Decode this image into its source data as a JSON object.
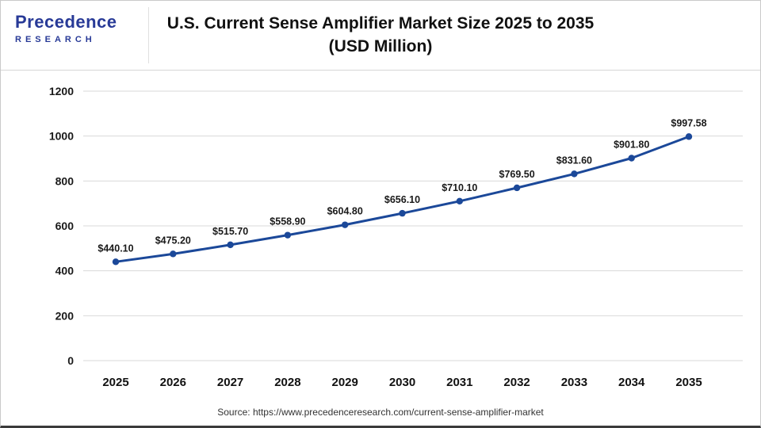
{
  "header": {
    "logo": {
      "line1": "Precedence",
      "line2": "RESEARCH"
    },
    "title_line1": "U.S. Current Sense Amplifier Market Size 2025 to 2035",
    "title_line2": "(USD Million)"
  },
  "footer": {
    "source": "Source: https://www.precedenceresearch.com/current-sense-amplifier-market"
  },
  "chart_data": {
    "type": "line",
    "title": "U.S. Current Sense Amplifier Market Size 2025 to 2035 (USD Million)",
    "xlabel": "",
    "ylabel": "",
    "categories": [
      "2025",
      "2026",
      "2027",
      "2028",
      "2029",
      "2030",
      "2031",
      "2032",
      "2033",
      "2034",
      "2035"
    ],
    "values": [
      440.1,
      475.2,
      515.7,
      558.9,
      604.8,
      656.1,
      710.1,
      769.5,
      831.6,
      901.8,
      997.58
    ],
    "point_labels": [
      "$440.10",
      "$475.20",
      "$515.70",
      "$558.90",
      "$604.80",
      "$656.10",
      "$710.10",
      "$769.50",
      "$831.60",
      "$901.80",
      "$997.58"
    ],
    "yticks": [
      0,
      200,
      400,
      600,
      800,
      1000,
      1200
    ],
    "ylim": [
      0,
      1200
    ],
    "grid": true,
    "legend": "none",
    "line_color": "#1b4899",
    "grid_color": "#d9d9d9",
    "label_color": "#1a1a1a"
  }
}
